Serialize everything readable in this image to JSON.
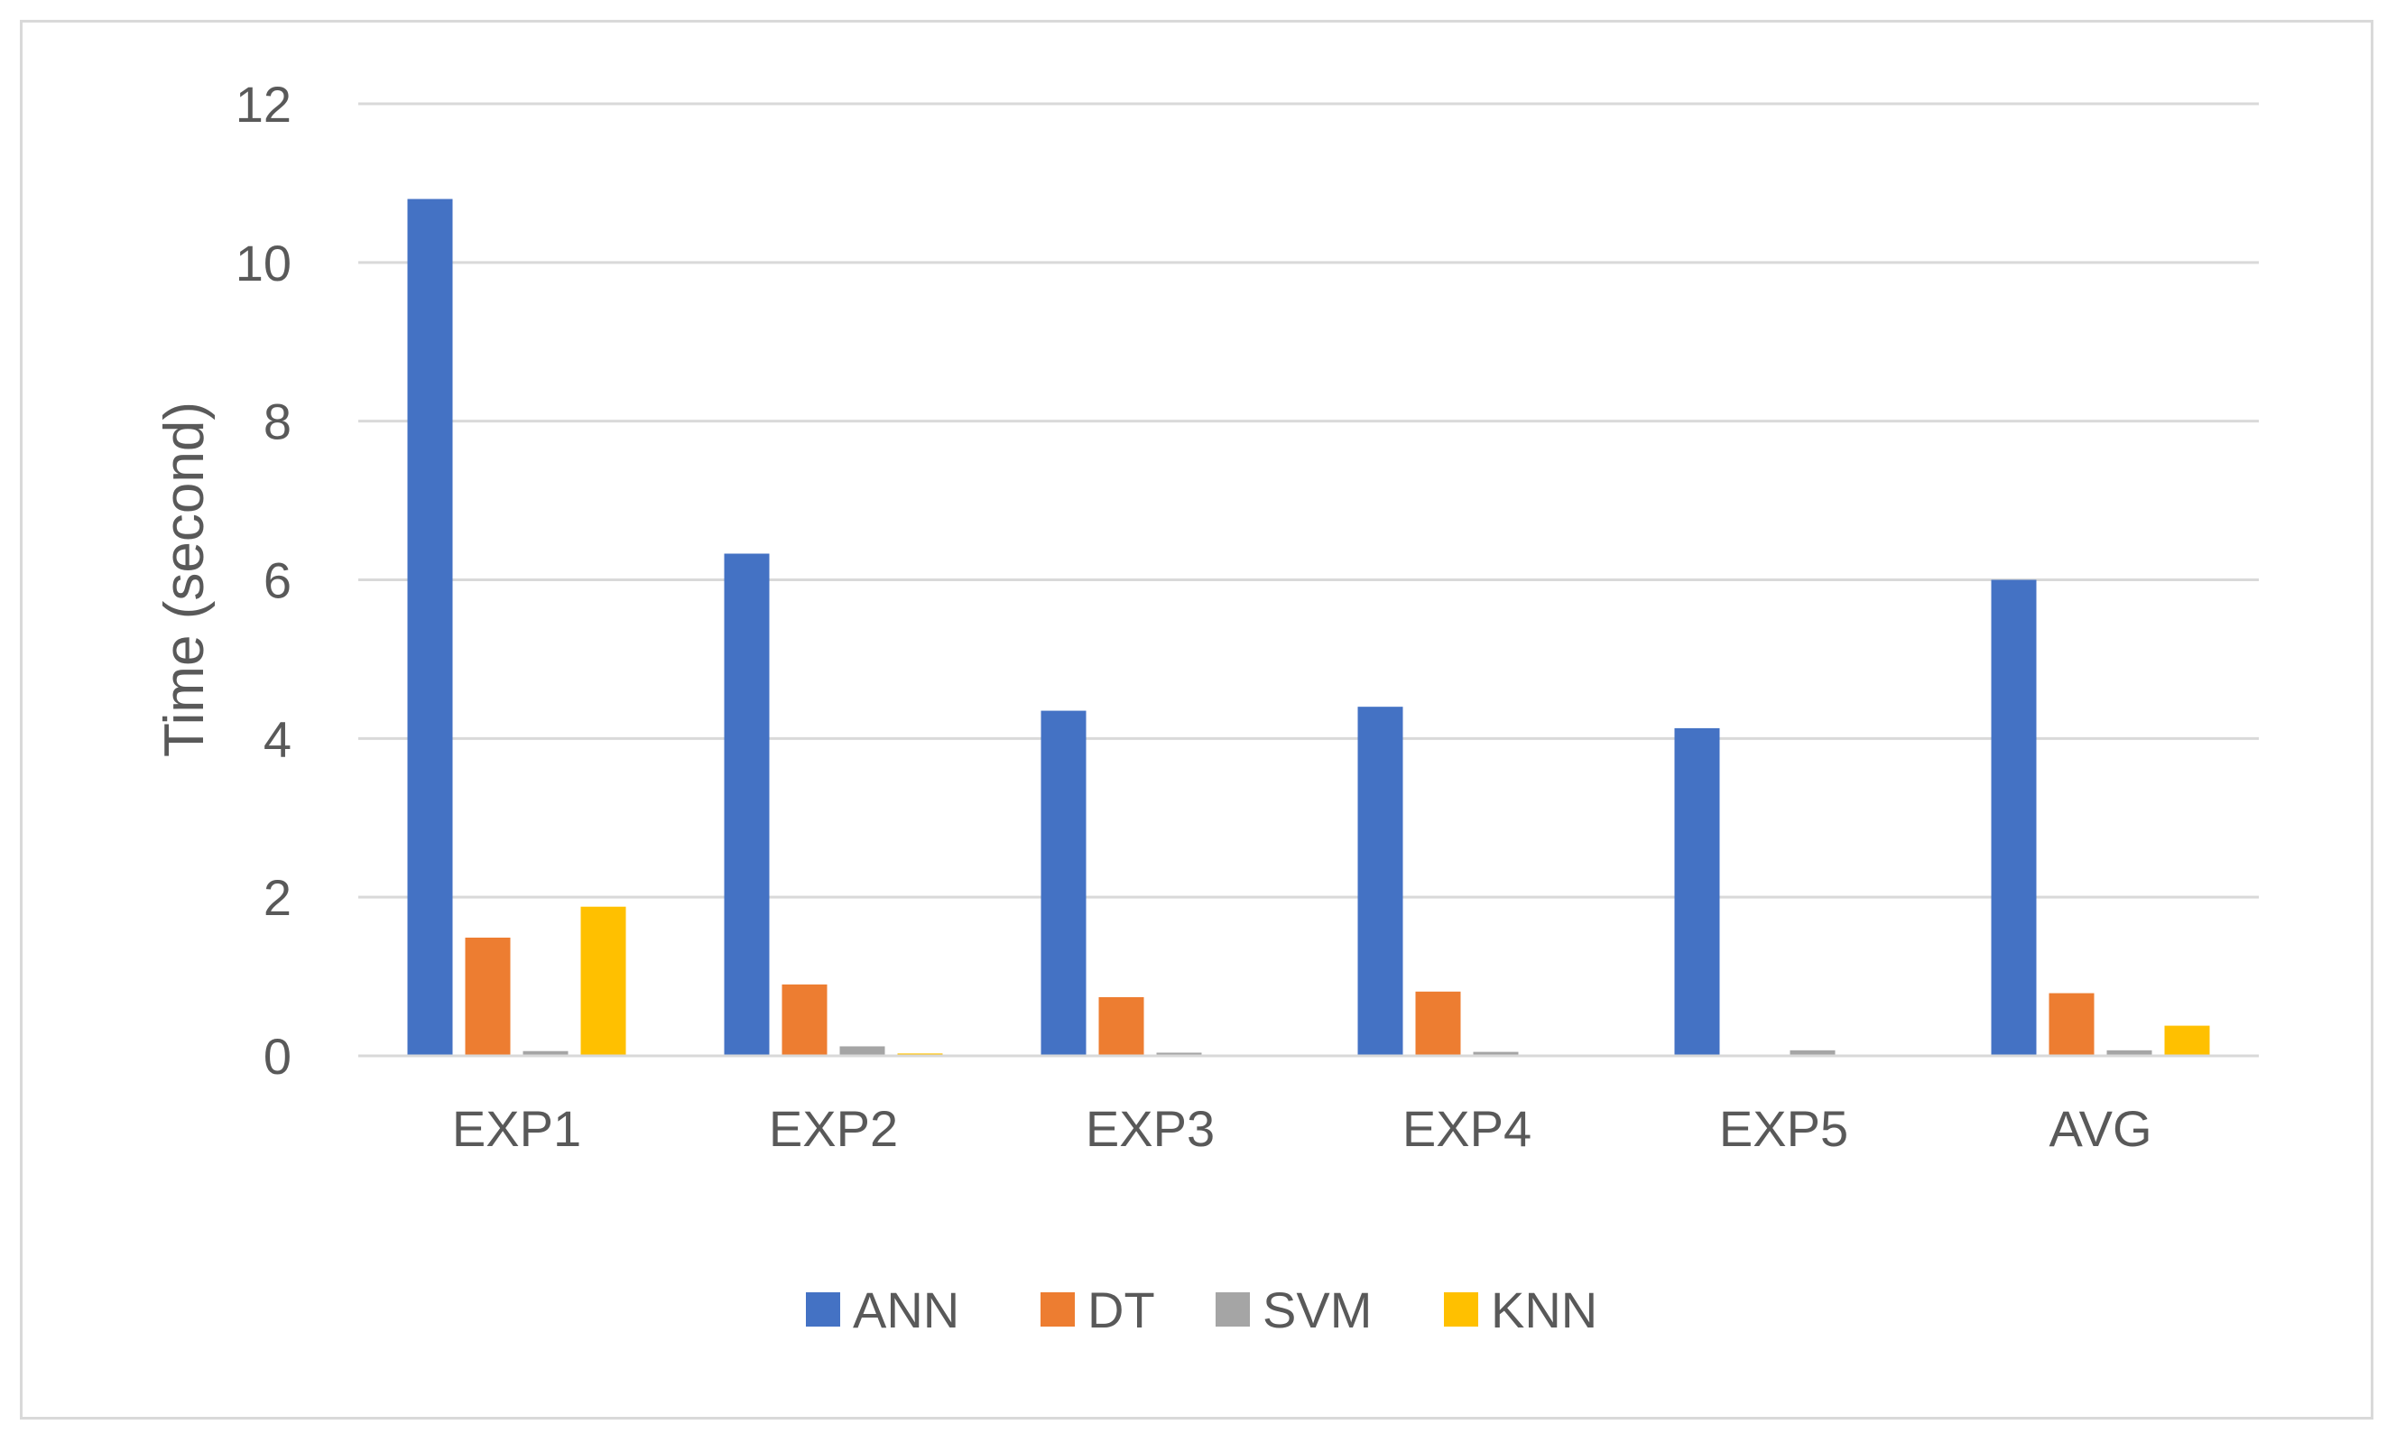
{
  "chart_data": {
    "type": "bar",
    "title": "",
    "xlabel": "",
    "ylabel": "Time (second)",
    "ylim": [
      0,
      12
    ],
    "yticks": [
      0,
      2,
      4,
      6,
      8,
      10,
      12
    ],
    "grid": true,
    "legend_position": "bottom",
    "categories": [
      "EXP1",
      "EXP2",
      "EXP3",
      "EXP4",
      "EXP5",
      "AVG"
    ],
    "series": [
      {
        "name": "ANN",
        "color": "#4472C4",
        "values": [
          10.8,
          6.33,
          4.35,
          4.4,
          4.13,
          6.0
        ]
      },
      {
        "name": "DT",
        "color": "#ED7D31",
        "values": [
          1.49,
          0.9,
          0.74,
          0.81,
          0.0,
          0.79
        ]
      },
      {
        "name": "SVM",
        "color": "#A5A5A5",
        "values": [
          0.06,
          0.12,
          0.04,
          0.05,
          0.07,
          0.07
        ]
      },
      {
        "name": "KNN",
        "color": "#FFC000",
        "values": [
          1.88,
          0.03,
          0.0,
          0.0,
          0.0,
          0.38
        ]
      }
    ]
  }
}
